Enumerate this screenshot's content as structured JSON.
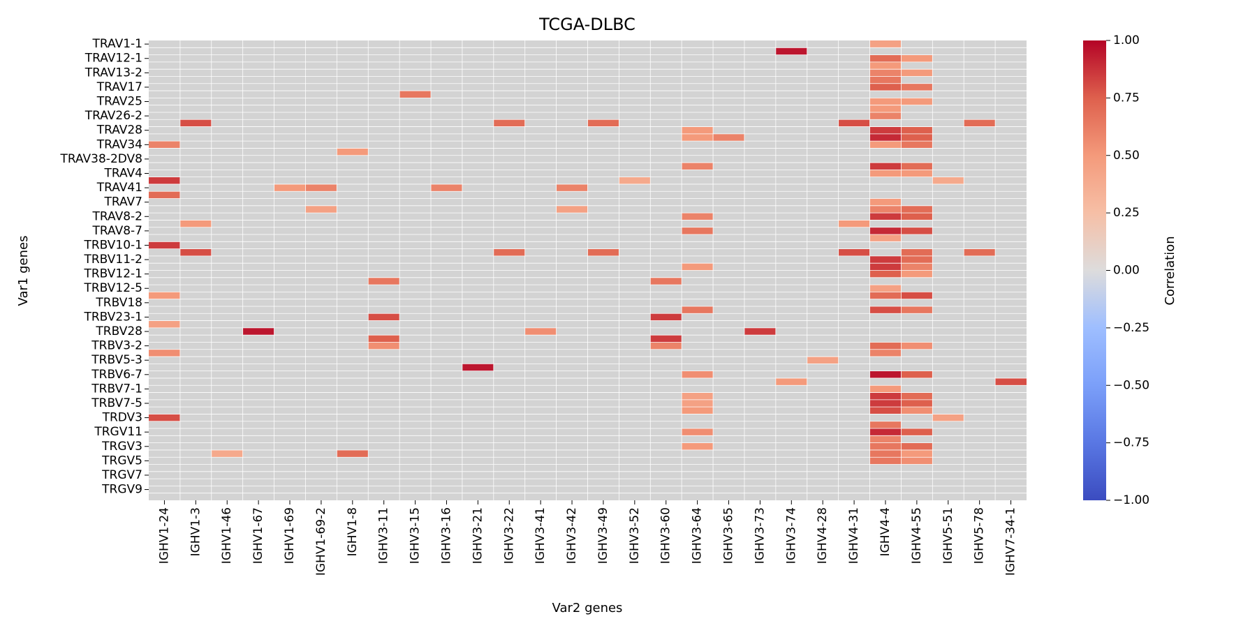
{
  "chart_data": {
    "type": "heatmap",
    "title": "TCGA-DLBC",
    "xlabel": "Var2 genes",
    "ylabel": "Var1 genes",
    "colorbar": {
      "label": "Correlation",
      "range": [
        -1,
        1
      ],
      "ticks": [
        "1.00",
        "0.75",
        "0.50",
        "0.25",
        "0.00",
        "−0.25",
        "−0.50",
        "−0.75",
        "−1.00"
      ],
      "colormap": "coolwarm"
    },
    "missing_color": "#d3d3d3",
    "x_categories": [
      "IGHV1-24",
      "IGHV1-3",
      "IGHV1-46",
      "IGHV1-67",
      "IGHV1-69",
      "IGHV1-69-2",
      "IGHV1-8",
      "IGHV3-11",
      "IGHV3-15",
      "IGHV3-16",
      "IGHV3-21",
      "IGHV3-22",
      "IGHV3-41",
      "IGHV3-42",
      "IGHV3-49",
      "IGHV3-52",
      "IGHV3-60",
      "IGHV3-64",
      "IGHV3-65",
      "IGHV3-73",
      "IGHV3-74",
      "IGHV4-28",
      "IGHV4-31",
      "IGHV4-4",
      "IGHV4-55",
      "IGHV5-51",
      "IGHV5-78",
      "IGHV7-34-1"
    ],
    "y_tick_labels": [
      "TRAV1-1",
      "TRAV12-1",
      "TRAV13-2",
      "TRAV17",
      "TRAV25",
      "TRAV26-2",
      "TRAV28",
      "TRAV34",
      "TRAV38-2DV8",
      "TRAV4",
      "TRAV41",
      "TRAV7",
      "TRAV8-2",
      "TRAV8-7",
      "TRBV10-1",
      "TRBV11-2",
      "TRBV12-1",
      "TRBV12-5",
      "TRBV18",
      "TRBV23-1",
      "TRBV28",
      "TRBV3-2",
      "TRBV5-3",
      "TRBV6-7",
      "TRBV7-1",
      "TRBV7-5",
      "TRDV3",
      "TRGV11",
      "TRGV3",
      "TRGV5",
      "TRGV7",
      "TRGV9"
    ],
    "n_rows": 64,
    "cells": [
      [
        0,
        23,
        0.45
      ],
      [
        1,
        20,
        0.95
      ],
      [
        2,
        23,
        0.7
      ],
      [
        2,
        24,
        0.5
      ],
      [
        3,
        23,
        0.5
      ],
      [
        4,
        23,
        0.6
      ],
      [
        4,
        24,
        0.5
      ],
      [
        5,
        23,
        0.65
      ],
      [
        6,
        23,
        0.75
      ],
      [
        6,
        24,
        0.65
      ],
      [
        7,
        8,
        0.65
      ],
      [
        8,
        23,
        0.5
      ],
      [
        8,
        24,
        0.5
      ],
      [
        9,
        23,
        0.5
      ],
      [
        10,
        23,
        0.6
      ],
      [
        11,
        1,
        0.8
      ],
      [
        11,
        11,
        0.7
      ],
      [
        11,
        14,
        0.7
      ],
      [
        11,
        22,
        0.8
      ],
      [
        11,
        26,
        0.7
      ],
      [
        12,
        17,
        0.5
      ],
      [
        12,
        23,
        0.85
      ],
      [
        12,
        24,
        0.75
      ],
      [
        13,
        17,
        0.5
      ],
      [
        13,
        18,
        0.6
      ],
      [
        13,
        23,
        0.9
      ],
      [
        13,
        24,
        0.75
      ],
      [
        14,
        0,
        0.6
      ],
      [
        14,
        23,
        0.5
      ],
      [
        14,
        24,
        0.65
      ],
      [
        15,
        6,
        0.5
      ],
      [
        17,
        17,
        0.6
      ],
      [
        17,
        23,
        0.85
      ],
      [
        17,
        24,
        0.7
      ],
      [
        18,
        23,
        0.5
      ],
      [
        18,
        24,
        0.5
      ],
      [
        19,
        0,
        0.85
      ],
      [
        19,
        15,
        0.4
      ],
      [
        19,
        25,
        0.4
      ],
      [
        20,
        4,
        0.5
      ],
      [
        20,
        5,
        0.6
      ],
      [
        20,
        9,
        0.6
      ],
      [
        20,
        13,
        0.6
      ],
      [
        21,
        0,
        0.7
      ],
      [
        22,
        23,
        0.5
      ],
      [
        23,
        5,
        0.45
      ],
      [
        23,
        13,
        0.45
      ],
      [
        23,
        23,
        0.6
      ],
      [
        23,
        24,
        0.7
      ],
      [
        24,
        17,
        0.6
      ],
      [
        24,
        23,
        0.85
      ],
      [
        24,
        24,
        0.75
      ],
      [
        25,
        1,
        0.5
      ],
      [
        25,
        22,
        0.5
      ],
      [
        26,
        17,
        0.65
      ],
      [
        26,
        23,
        0.9
      ],
      [
        26,
        24,
        0.8
      ],
      [
        27,
        23,
        0.45
      ],
      [
        28,
        0,
        0.85
      ],
      [
        29,
        1,
        0.8
      ],
      [
        29,
        11,
        0.7
      ],
      [
        29,
        14,
        0.7
      ],
      [
        29,
        22,
        0.8
      ],
      [
        29,
        24,
        0.7
      ],
      [
        29,
        26,
        0.7
      ],
      [
        30,
        23,
        0.85
      ],
      [
        30,
        24,
        0.7
      ],
      [
        31,
        17,
        0.5
      ],
      [
        31,
        23,
        0.85
      ],
      [
        31,
        24,
        0.6
      ],
      [
        32,
        23,
        0.75
      ],
      [
        32,
        24,
        0.5
      ],
      [
        33,
        7,
        0.65
      ],
      [
        33,
        16,
        0.65
      ],
      [
        34,
        23,
        0.45
      ],
      [
        35,
        0,
        0.5
      ],
      [
        35,
        23,
        0.7
      ],
      [
        35,
        24,
        0.8
      ],
      [
        37,
        17,
        0.65
      ],
      [
        37,
        23,
        0.8
      ],
      [
        37,
        24,
        0.65
      ],
      [
        38,
        7,
        0.8
      ],
      [
        38,
        16,
        0.85
      ],
      [
        39,
        0,
        0.45
      ],
      [
        40,
        3,
        0.95
      ],
      [
        40,
        12,
        0.55
      ],
      [
        40,
        19,
        0.85
      ],
      [
        41,
        7,
        0.75
      ],
      [
        41,
        16,
        0.85
      ],
      [
        42,
        7,
        0.55
      ],
      [
        42,
        16,
        0.6
      ],
      [
        42,
        23,
        0.7
      ],
      [
        42,
        24,
        0.55
      ],
      [
        43,
        0,
        0.55
      ],
      [
        43,
        23,
        0.6
      ],
      [
        44,
        21,
        0.45
      ],
      [
        45,
        10,
        0.95
      ],
      [
        46,
        17,
        0.55
      ],
      [
        46,
        23,
        0.95
      ],
      [
        46,
        24,
        0.75
      ],
      [
        47,
        20,
        0.5
      ],
      [
        47,
        27,
        0.8
      ],
      [
        48,
        23,
        0.5
      ],
      [
        49,
        17,
        0.45
      ],
      [
        49,
        23,
        0.85
      ],
      [
        49,
        24,
        0.7
      ],
      [
        50,
        17,
        0.45
      ],
      [
        50,
        23,
        0.85
      ],
      [
        50,
        24,
        0.75
      ],
      [
        51,
        17,
        0.5
      ],
      [
        51,
        23,
        0.8
      ],
      [
        51,
        24,
        0.55
      ],
      [
        52,
        0,
        0.8
      ],
      [
        52,
        25,
        0.45
      ],
      [
        53,
        23,
        0.65
      ],
      [
        54,
        17,
        0.55
      ],
      [
        54,
        23,
        0.9
      ],
      [
        54,
        24,
        0.75
      ],
      [
        55,
        23,
        0.6
      ],
      [
        56,
        17,
        0.5
      ],
      [
        56,
        23,
        0.65
      ],
      [
        56,
        24,
        0.7
      ],
      [
        57,
        2,
        0.4
      ],
      [
        57,
        6,
        0.7
      ],
      [
        57,
        23,
        0.65
      ],
      [
        57,
        24,
        0.5
      ],
      [
        58,
        23,
        0.65
      ],
      [
        58,
        24,
        0.55
      ]
    ]
  }
}
